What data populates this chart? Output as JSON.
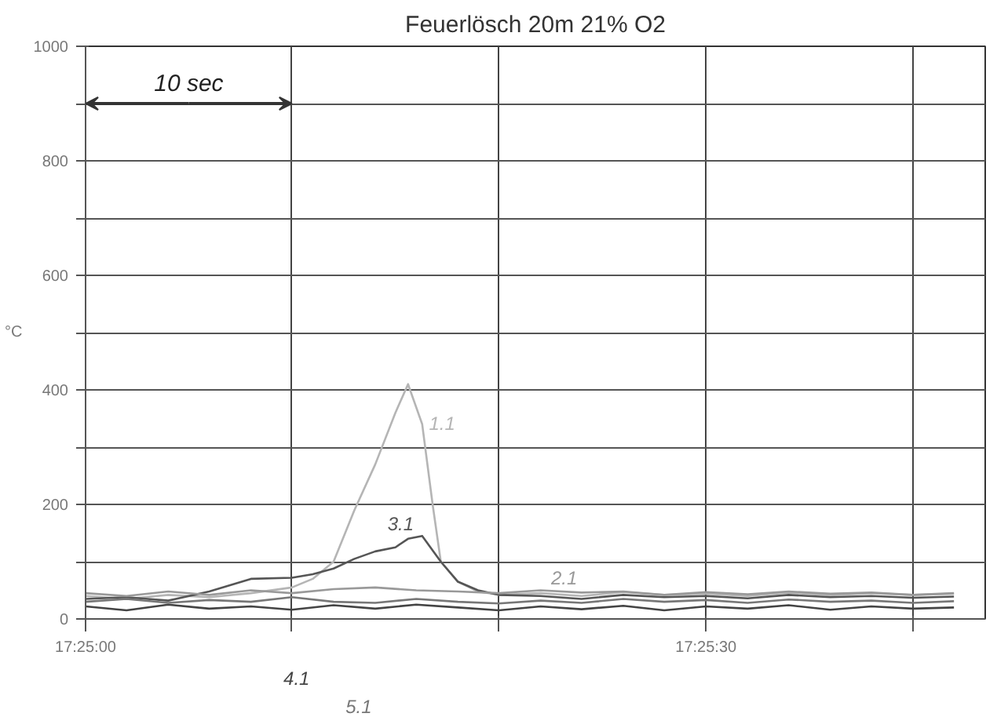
{
  "chart_data": {
    "type": "line",
    "title": "Feuerlösch 20m 21% O2",
    "ylabel": "°C",
    "x": [
      17.41667,
      17.41722,
      17.41778,
      17.41833,
      17.41889,
      17.41944,
      17.42,
      17.42056,
      17.42111,
      17.42167,
      17.42222,
      17.42278,
      17.42333,
      17.42389,
      17.42444,
      17.425,
      17.42556,
      17.42611,
      17.42667,
      17.42722,
      17.42778,
      17.42833
    ],
    "series": [
      {
        "name": "1.1",
        "color": "#b5b5b5",
        "x": [
          17.41667,
          17.41722,
          17.41778,
          17.41833,
          17.41889,
          17.41944,
          17.41972,
          17.42,
          17.42028,
          17.42056,
          17.42083,
          17.421,
          17.42119,
          17.42133,
          17.42144,
          17.42167,
          17.42194,
          17.42222,
          17.42278,
          17.42333,
          17.42389,
          17.42444,
          17.425,
          17.42556,
          17.42611,
          17.42667,
          17.42722,
          17.42778,
          17.42833
        ],
        "values": [
          40,
          35,
          42,
          38,
          45,
          55,
          70,
          100,
          190,
          270,
          360,
          410,
          340,
          200,
          100,
          65,
          48,
          42,
          45,
          40,
          47,
          42,
          44,
          40,
          46,
          41,
          45,
          42,
          44
        ]
      },
      {
        "name": "3.1",
        "color": "#555555",
        "x": [
          17.41667,
          17.41722,
          17.41778,
          17.41833,
          17.41889,
          17.41944,
          17.41972,
          17.42,
          17.42028,
          17.42056,
          17.42083,
          17.421,
          17.42119,
          17.42144,
          17.42167,
          17.42194,
          17.42222,
          17.42278,
          17.42333,
          17.42389,
          17.42444,
          17.425,
          17.42556,
          17.42611,
          17.42667,
          17.42722,
          17.42778,
          17.42833
        ],
        "values": [
          35,
          38,
          32,
          48,
          70,
          72,
          78,
          88,
          105,
          118,
          125,
          140,
          145,
          100,
          65,
          50,
          42,
          40,
          35,
          42,
          38,
          40,
          36,
          42,
          38,
          40,
          37,
          39
        ]
      },
      {
        "name": "2.1",
        "color": "#999999",
        "values": [
          45,
          40,
          48,
          42,
          50,
          45,
          52,
          55,
          50,
          48,
          45,
          50,
          46,
          48,
          42,
          47,
          43,
          48,
          44,
          46,
          42,
          45
        ]
      },
      {
        "name": "4.1",
        "color": "#444444",
        "values": [
          22,
          15,
          25,
          18,
          22,
          16,
          24,
          18,
          25,
          20,
          15,
          22,
          17,
          23,
          15,
          22,
          18,
          24,
          16,
          22,
          18,
          20
        ]
      },
      {
        "name": "5.1",
        "color": "#777777",
        "values": [
          30,
          35,
          28,
          33,
          30,
          38,
          30,
          28,
          35,
          30,
          27,
          32,
          28,
          35,
          30,
          33,
          28,
          34,
          30,
          32,
          28,
          31
        ]
      }
    ],
    "xlim": [
      17.41667,
      17.42875
    ],
    "xticks": [
      {
        "value": 17.41667,
        "label": "17:25:00"
      },
      {
        "value": 17.41944,
        "label": null
      },
      {
        "value": 17.42222,
        "label": null
      },
      {
        "value": 17.425,
        "label": "17:25:30"
      },
      {
        "value": 17.42778,
        "label": null
      }
    ],
    "ylim": [
      0,
      1000
    ],
    "yticks": [
      0,
      {
        "value": 100,
        "label": null
      },
      200,
      {
        "value": 300,
        "label": null
      },
      400,
      {
        "value": 500,
        "label": null
      },
      600,
      {
        "value": 700,
        "label": null
      },
      800,
      {
        "value": 900,
        "label": null
      },
      1000
    ],
    "annotations": [
      "10 sec"
    ],
    "grid": true,
    "legend": false,
    "marker": "none",
    "line_style": "solid"
  }
}
